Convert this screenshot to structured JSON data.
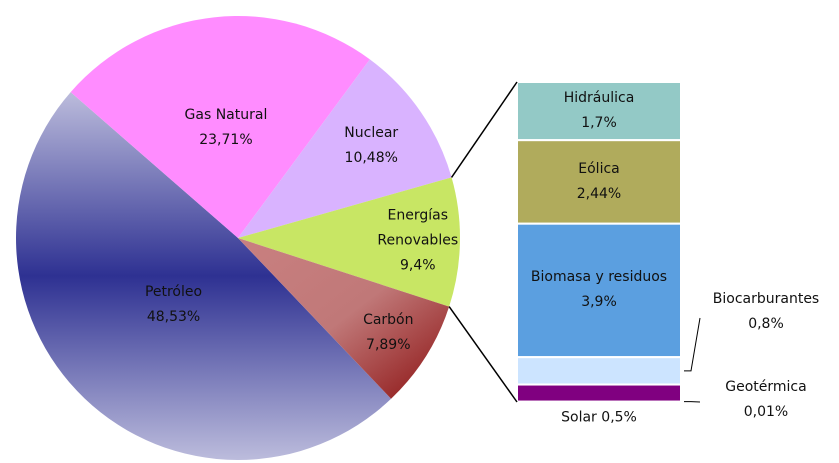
{
  "chart_data": {
    "type": "pie-of-bar",
    "pie": {
      "labels": [
        "Petróleo",
        "Gas Natural",
        "Nuclear",
        "Energías Renovables",
        "Carbón"
      ],
      "values": [
        48.53,
        23.71,
        10.48,
        9.4,
        7.89
      ],
      "value_labels": [
        "48,53%",
        "23,71%",
        "10,48%",
        "9,4%",
        "7,89%"
      ],
      "colors": [
        [
          "#bcbcdc",
          "#2e3192",
          "#bcbcdc"
        ],
        "#ff8cff",
        "#d9b3ff",
        "#c8e664",
        [
          "#c98080",
          "#c07878",
          "#8b1010"
        ]
      ]
    },
    "bar": {
      "labels": [
        "Hidráulica",
        "Eólica",
        "Biomasa y residuos",
        "Biocarburantes",
        "Solar",
        "Geotérmica"
      ],
      "values": [
        1.7,
        2.44,
        3.9,
        0.8,
        0.5,
        0.01
      ],
      "value_labels": [
        "1,7%",
        "2,44%",
        "3,9%",
        "0,8%",
        "0,5%",
        "0,01%"
      ],
      "colors": [
        "#93c9c6",
        "#b0ab5c",
        "#5b9fe0",
        "#cce4ff",
        "#800080",
        "#000000"
      ]
    }
  }
}
